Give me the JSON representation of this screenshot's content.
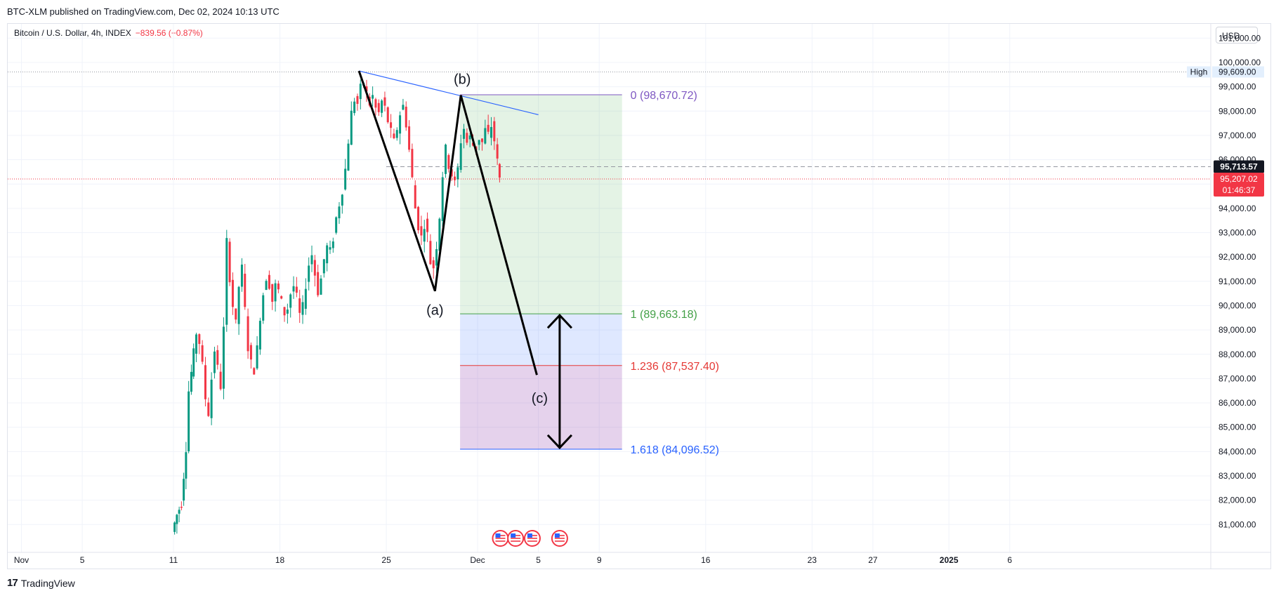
{
  "header": {
    "published": "BTC-XLM published on TradingView.com, Dec 02, 2024 10:13 UTC",
    "symbol": "Bitcoin / U.S. Dollar, 4h, INDEX",
    "change": "−839.56 (−0.87%)",
    "currency": "USD"
  },
  "footer": {
    "brand": "TradingView",
    "logo_icon": "tradingview-logo-icon"
  },
  "chart_data": {
    "type": "candlestick",
    "symbol": "Bitcoin / U.S. Dollar",
    "interval": "4h",
    "ylim": [
      80500,
      101700
    ],
    "y_ticks": [
      101000,
      100000,
      99000,
      98000,
      97000,
      96000,
      95000,
      94000,
      93000,
      92000,
      91000,
      90000,
      89000,
      88000,
      87000,
      86000,
      85000,
      84000,
      83000,
      82000,
      81000
    ],
    "x_ticks": [
      {
        "label": "Nov",
        "day": 0
      },
      {
        "label": "5",
        "day": 4
      },
      {
        "label": "11",
        "day": 10
      },
      {
        "label": "18",
        "day": 17
      },
      {
        "label": "25",
        "day": 24
      },
      {
        "label": "Dec",
        "day": 30
      },
      {
        "label": "5",
        "day": 34
      },
      {
        "label": "9",
        "day": 38
      },
      {
        "label": "16",
        "day": 45
      },
      {
        "label": "23",
        "day": 52
      },
      {
        "label": "27",
        "day": 56
      },
      {
        "label": "2025",
        "day": 61
      },
      {
        "label": "6",
        "day": 65
      }
    ],
    "x_scale": {
      "ref_day_a": 10,
      "ref_px_a": 247,
      "ref_day_b": 30,
      "ref_px_b": 680
    },
    "high": {
      "label": "High",
      "value": "99,609.00",
      "price": 99609
    },
    "last_price": {
      "value": "95,713.57",
      "price": 95713.57
    },
    "current_price": {
      "value": "95,207.02",
      "countdown": "01:46:37",
      "price": 95207.02
    },
    "colors": {
      "up": "#089981",
      "down": "#f23645",
      "trend": "#2962ff",
      "wave": "#000000"
    },
    "candles_path": [
      [
        10.0,
        80700
      ],
      [
        10.3,
        81400
      ],
      [
        10.6,
        81900
      ],
      [
        10.9,
        84200
      ],
      [
        11.1,
        86500
      ],
      [
        11.4,
        88000
      ],
      [
        11.6,
        88900
      ],
      [
        11.8,
        88500
      ],
      [
        12.0,
        87500
      ],
      [
        12.2,
        86200
      ],
      [
        12.4,
        85600
      ],
      [
        12.6,
        87000
      ],
      [
        12.8,
        88200
      ],
      [
        13.0,
        87400
      ],
      [
        13.2,
        86700
      ],
      [
        13.4,
        89000
      ],
      [
        13.6,
        92600
      ],
      [
        13.8,
        91200
      ],
      [
        14.0,
        90000
      ],
      [
        14.2,
        89200
      ],
      [
        14.4,
        90800
      ],
      [
        14.6,
        91500
      ],
      [
        14.8,
        89800
      ],
      [
        15.0,
        88300
      ],
      [
        15.2,
        87600
      ],
      [
        15.4,
        87400
      ],
      [
        15.6,
        88200
      ],
      [
        15.8,
        89600
      ],
      [
        16.0,
        90500
      ],
      [
        16.2,
        91200
      ],
      [
        16.4,
        90900
      ],
      [
        16.6,
        90200
      ],
      [
        16.8,
        90800
      ],
      [
        17.0,
        90600
      ],
      [
        17.2,
        90100
      ],
      [
        17.4,
        89700
      ],
      [
        17.6,
        89900
      ],
      [
        17.8,
        90500
      ],
      [
        18.0,
        90800
      ],
      [
        18.2,
        90300
      ],
      [
        18.4,
        89600
      ],
      [
        18.6,
        89900
      ],
      [
        18.8,
        90900
      ],
      [
        19.0,
        91700
      ],
      [
        19.2,
        92100
      ],
      [
        19.4,
        91300
      ],
      [
        19.6,
        90600
      ],
      [
        19.8,
        91100
      ],
      [
        20.0,
        91900
      ],
      [
        20.2,
        92400
      ],
      [
        20.4,
        92200
      ],
      [
        20.6,
        92800
      ],
      [
        20.8,
        93600
      ],
      [
        21.0,
        94200
      ],
      [
        21.2,
        94800
      ],
      [
        21.4,
        95600
      ],
      [
        21.6,
        96800
      ],
      [
        21.8,
        97900
      ],
      [
        22.0,
        98500
      ],
      [
        22.2,
        98300
      ],
      [
        22.4,
        98900
      ],
      [
        22.6,
        99200
      ],
      [
        22.8,
        98700
      ],
      [
        23.0,
        98300
      ],
      [
        23.2,
        98600
      ],
      [
        23.4,
        98100
      ],
      [
        23.6,
        97900
      ],
      [
        23.8,
        98400
      ],
      [
        24.0,
        98100
      ],
      [
        24.2,
        97600
      ],
      [
        24.4,
        97100
      ],
      [
        24.6,
        96700
      ],
      [
        24.8,
        97300
      ],
      [
        25.0,
        97900
      ],
      [
        25.2,
        98200
      ],
      [
        25.4,
        97500
      ],
      [
        25.6,
        96400
      ],
      [
        25.8,
        95200
      ],
      [
        26.0,
        94000
      ],
      [
        26.2,
        93300
      ],
      [
        26.4,
        92800
      ],
      [
        26.6,
        93400
      ],
      [
        26.8,
        92900
      ],
      [
        27.0,
        91800
      ],
      [
        27.2,
        91600
      ],
      [
        27.4,
        92500
      ],
      [
        27.6,
        93700
      ],
      [
        27.8,
        95400
      ],
      [
        28.0,
        96400
      ],
      [
        28.2,
        95800
      ],
      [
        28.4,
        95400
      ],
      [
        28.6,
        95000
      ],
      [
        28.8,
        95600
      ],
      [
        29.0,
        96800
      ],
      [
        29.2,
        97300
      ],
      [
        29.4,
        96700
      ],
      [
        29.6,
        96900
      ],
      [
        29.8,
        96600
      ],
      [
        30.0,
        96500
      ],
      [
        30.2,
        96900
      ],
      [
        30.4,
        96700
      ],
      [
        30.6,
        97200
      ],
      [
        30.8,
        97000
      ],
      [
        31.0,
        97400
      ],
      [
        31.2,
        96800
      ],
      [
        31.4,
        95900
      ],
      [
        31.5,
        95200
      ]
    ],
    "wave": {
      "points": [
        {
          "day": 22.2,
          "price": 99650
        },
        {
          "day": 27.2,
          "price": 90600
        },
        {
          "day": 28.9,
          "price": 98650
        },
        {
          "day": 33.9,
          "price": 87150
        }
      ],
      "labels": [
        "(a)",
        "(b)",
        "(c)"
      ]
    },
    "trendline": [
      {
        "day": 22.2,
        "price": 99650
      },
      {
        "day": 34.0,
        "price": 97850
      }
    ],
    "fib": {
      "from_day": 28.85,
      "to_day": 39.5,
      "levels": [
        {
          "ratio": 0,
          "price": 98670.72,
          "label": "0 (98,670.72)",
          "color": "#7e57c2"
        },
        {
          "ratio": 1,
          "price": 89663.18,
          "label": "1 (89,663.18)",
          "color": "#43a047"
        },
        {
          "ratio": 1.236,
          "price": 87537.4,
          "label": "1.236 (87,537.40)",
          "color": "#e53935"
        },
        {
          "ratio": 1.618,
          "price": 84096.52,
          "label": "1.618 (84,096.52)",
          "color": "#2962ff"
        }
      ]
    },
    "arrow": {
      "day": 35.4,
      "from_price": 89660,
      "to_price": 84100
    },
    "event_icons": {
      "days": [
        31.5,
        32.5,
        33.6,
        35.4
      ],
      "icon": "us-flag-event-icon"
    }
  }
}
